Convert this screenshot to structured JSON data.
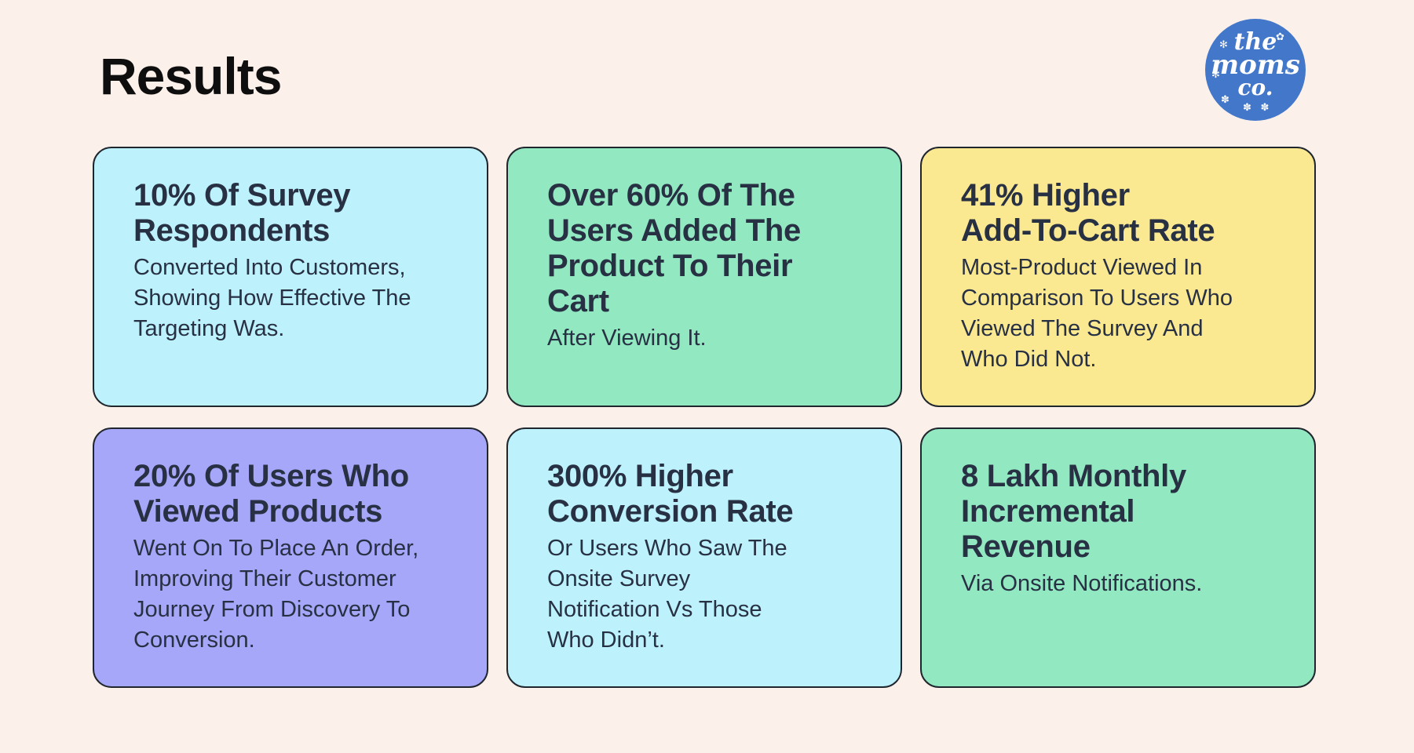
{
  "page": {
    "title": "Results"
  },
  "colors": {
    "background": "#fcf1ea",
    "title_text": "#0e0e0e",
    "card_text": "#283043",
    "card_border": "#20262e",
    "card_cyan": "#bdf2fd",
    "card_mint": "#92e8c1",
    "card_yellow": "#fbe992",
    "card_purple": "#a6a7f9",
    "logo_blue": "#4377c9",
    "logo_text": "#ffffff"
  },
  "logo": {
    "line1": "the",
    "line2": "moms",
    "line3": "co.",
    "decorations": [
      {
        "name": "sparkle-icon",
        "glyph": "✻"
      },
      {
        "name": "flower-icon",
        "glyph": "✿"
      },
      {
        "name": "heart-icon",
        "glyph": "♡"
      },
      {
        "name": "sparkle-icon",
        "glyph": "✻"
      },
      {
        "name": "sprig-icon",
        "glyph": "✽"
      },
      {
        "name": "laurel-icon",
        "glyph": "✽ ✽"
      }
    ]
  },
  "cards": [
    {
      "heading": "10% Of Survey\nRespondents",
      "body": "Converted Into Customers,\nShowing How Effective The\nTargeting Was.",
      "bg": "#bdf2fd"
    },
    {
      "heading": "Over 60% Of The\nUsers Added The\nProduct To Their\nCart",
      "body": "After Viewing It.",
      "bg": "#92e8c1"
    },
    {
      "heading": "41% Higher\nAdd-To-Cart Rate",
      "body": "Most-Product Viewed In\nComparison To Users Who\nViewed The Survey And\nWho Did Not.",
      "bg": "#fbe992"
    },
    {
      "heading": "20% Of Users Who\nViewed Products",
      "body": "Went On To Place An Order,\nImproving Their Customer\nJourney From Discovery To\nConversion.",
      "bg": "#a6a7f9"
    },
    {
      "heading": "300% Higher\nConversion Rate",
      "body": "Or Users Who Saw The\nOnsite Survey\nNotification Vs Those\nWho Didn’t.",
      "bg": "#bdf2fd"
    },
    {
      "heading": "8 Lakh Monthly\nIncremental\nRevenue",
      "body": "Via Onsite Notifications.",
      "bg": "#92e8c1"
    }
  ]
}
